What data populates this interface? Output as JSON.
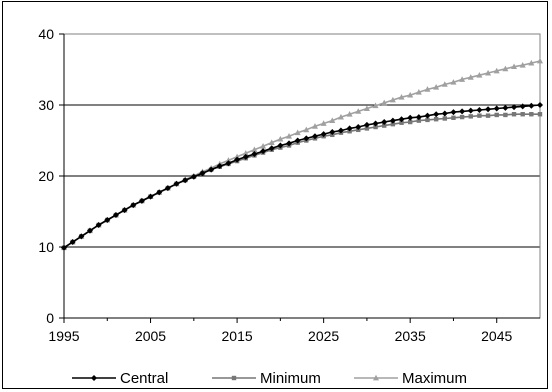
{
  "chart_data": {
    "type": "line",
    "title": "",
    "xlabel": "",
    "ylabel": "",
    "xlim": [
      1995,
      2050
    ],
    "ylim": [
      0,
      40
    ],
    "x_ticks": [
      "1995",
      "2005",
      "2015",
      "2025",
      "2035",
      "2045"
    ],
    "y_ticks": [
      "0",
      "10",
      "20",
      "30",
      "40"
    ],
    "grid": "horizontal",
    "legend_position": "bottom",
    "x": [
      1995,
      1996,
      1997,
      1998,
      1999,
      2000,
      2001,
      2002,
      2003,
      2004,
      2005,
      2006,
      2007,
      2008,
      2009,
      2010,
      2011,
      2012,
      2013,
      2014,
      2015,
      2016,
      2017,
      2018,
      2019,
      2020,
      2021,
      2022,
      2023,
      2024,
      2025,
      2026,
      2027,
      2028,
      2029,
      2030,
      2031,
      2032,
      2033,
      2034,
      2035,
      2036,
      2037,
      2038,
      2039,
      2040,
      2041,
      2042,
      2043,
      2044,
      2045,
      2046,
      2047,
      2048,
      2049,
      2050
    ],
    "series": [
      {
        "name": "Central",
        "color": "#000000",
        "marker": "diamond",
        "values": [
          9.9,
          10.7,
          11.5,
          12.3,
          13.1,
          13.8,
          14.5,
          15.2,
          15.9,
          16.5,
          17.1,
          17.7,
          18.3,
          18.9,
          19.4,
          19.9,
          20.4,
          20.9,
          21.4,
          21.8,
          22.3,
          22.7,
          23.1,
          23.5,
          23.9,
          24.3,
          24.6,
          25.0,
          25.3,
          25.6,
          25.9,
          26.2,
          26.4,
          26.7,
          26.9,
          27.2,
          27.4,
          27.6,
          27.8,
          28.0,
          28.2,
          28.3,
          28.5,
          28.7,
          28.8,
          29.0,
          29.1,
          29.2,
          29.3,
          29.4,
          29.5,
          29.6,
          29.7,
          29.8,
          29.9,
          30.0
        ]
      },
      {
        "name": "Minimum",
        "color": "#777777",
        "marker": "square",
        "values": [
          9.9,
          10.7,
          11.5,
          12.3,
          13.1,
          13.8,
          14.5,
          15.2,
          15.9,
          16.5,
          17.1,
          17.7,
          18.3,
          18.9,
          19.4,
          19.9,
          20.4,
          20.9,
          21.3,
          21.7,
          22.1,
          22.5,
          22.9,
          23.3,
          23.7,
          24.0,
          24.3,
          24.7,
          25.0,
          25.3,
          25.6,
          25.8,
          26.1,
          26.3,
          26.5,
          26.7,
          26.9,
          27.1,
          27.3,
          27.5,
          27.6,
          27.8,
          27.9,
          28.0,
          28.1,
          28.2,
          28.3,
          28.4,
          28.5,
          28.5,
          28.6,
          28.6,
          28.7,
          28.7,
          28.7,
          28.7
        ]
      },
      {
        "name": "Maximum",
        "color": "#a0a0a0",
        "marker": "triangle",
        "values": [
          9.9,
          10.7,
          11.5,
          12.3,
          13.1,
          13.8,
          14.5,
          15.2,
          15.9,
          16.5,
          17.1,
          17.7,
          18.3,
          18.9,
          19.5,
          20.0,
          20.6,
          21.1,
          21.7,
          22.2,
          22.7,
          23.2,
          23.7,
          24.2,
          24.7,
          25.2,
          25.6,
          26.1,
          26.5,
          27.0,
          27.4,
          27.8,
          28.3,
          28.7,
          29.1,
          29.5,
          29.9,
          30.3,
          30.7,
          31.1,
          31.4,
          31.8,
          32.2,
          32.5,
          32.9,
          33.2,
          33.6,
          33.9,
          34.2,
          34.5,
          34.8,
          35.1,
          35.4,
          35.6,
          35.9,
          36.2
        ]
      }
    ]
  }
}
